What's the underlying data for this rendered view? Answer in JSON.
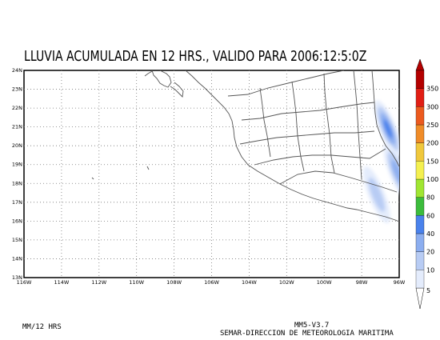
{
  "title": "LLUVIA ACUMULADA EN 12 HRS., VALIDO PARA 2006:12:5:0Z",
  "map": {
    "lon_range": [
      -116,
      -96
    ],
    "lat_range": [
      13,
      24
    ],
    "x_ticks": [
      "116W",
      "114W",
      "112W",
      "110W",
      "108W",
      "106W",
      "104W",
      "102W",
      "100W",
      "98W",
      "96W"
    ],
    "y_ticks": [
      "13N",
      "14N",
      "15N",
      "16N",
      "17N",
      "18N",
      "19N",
      "20N",
      "21N",
      "22N",
      "23N",
      "24N"
    ],
    "grid": "dotted"
  },
  "colorbar": {
    "labels": [
      "5",
      "10",
      "20",
      "40",
      "60",
      "80",
      "100",
      "150",
      "200",
      "250",
      "300",
      "350"
    ],
    "colors": [
      "#e4ecfc",
      "#b8ccf4",
      "#8caef0",
      "#4a82ec",
      "#3cbc3c",
      "#a0e632",
      "#f4f050",
      "#f0c83c",
      "#f08c28",
      "#ec5a1e",
      "#e11e14",
      "#b40000"
    ]
  },
  "rain_areas": [
    {
      "lon": -96.6,
      "lat": 20.9,
      "level": 3
    },
    {
      "lon": -97.2,
      "lat": 17.4,
      "level": 1
    },
    {
      "lon": -96.1,
      "lat": 18.6,
      "level": 2
    }
  ],
  "footer": {
    "left": "MM/12 HRS",
    "version": "MM5-V3.7",
    "org": "SEMAR-DIRECCION DE METEOROLOGIA MARITIMA"
  }
}
